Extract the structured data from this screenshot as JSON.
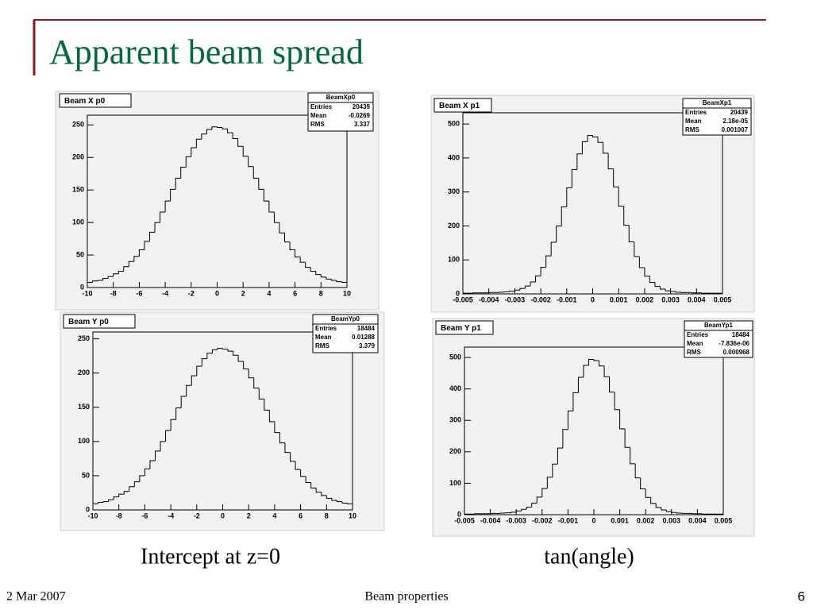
{
  "slide": {
    "title": "Apparent beam spread",
    "captions": [
      "Intercept at z=0",
      "tan(angle)"
    ],
    "footer": {
      "date": "2 Mar 2007",
      "center": "Beam properties",
      "page": "6"
    }
  },
  "chart_data": [
    {
      "type": "histogram",
      "title": "Beam X p0",
      "bins": [
        -10,
        -9.6,
        -9.2,
        -8.8,
        -8.4,
        -8,
        -7.6,
        -7.2,
        -6.8,
        -6.4,
        -6,
        -5.6,
        -5.2,
        -4.8,
        -4.4,
        -4,
        -3.6,
        -3.2,
        -2.8,
        -2.4,
        -2,
        -1.6,
        -1.2,
        -0.8,
        -0.4,
        0,
        0.4,
        0.8,
        1.2,
        1.6,
        2,
        2.4,
        2.8,
        3.2,
        3.6,
        4,
        4.4,
        4.8,
        5.2,
        5.6,
        6,
        6.4,
        6.8,
        7.2,
        7.6,
        8,
        8.4,
        8.8,
        9.2,
        9.6,
        10
      ],
      "values": [
        8,
        10,
        11,
        14,
        17,
        21,
        25,
        32,
        40,
        48,
        58,
        71,
        85,
        100,
        116,
        133,
        151,
        168,
        185,
        201,
        215,
        228,
        236,
        243,
        247,
        246,
        244,
        238,
        229,
        217,
        202,
        186,
        168,
        151,
        133,
        116,
        100,
        84,
        70,
        58,
        47,
        39,
        31,
        25,
        20,
        16,
        13,
        11,
        9,
        8
      ],
      "xlim": [
        -10,
        10
      ],
      "ylim": [
        0,
        265
      ],
      "xticks": [
        -10,
        -8,
        -6,
        -4,
        -2,
        0,
        2,
        4,
        6,
        8,
        10
      ],
      "yticks": [
        0,
        50,
        100,
        150,
        200,
        250
      ],
      "stats": {
        "name": "BeamXp0",
        "rows": [
          [
            "Entries",
            "20439"
          ],
          [
            "Mean",
            "-0.0269"
          ],
          [
            "RMS",
            "3.337"
          ]
        ]
      }
    },
    {
      "type": "histogram",
      "title": "Beam Y p0",
      "bins": [
        -10,
        -9.6,
        -9.2,
        -8.8,
        -8.4,
        -8,
        -7.6,
        -7.2,
        -6.8,
        -6.4,
        -6,
        -5.6,
        -5.2,
        -4.8,
        -4.4,
        -4,
        -3.6,
        -3.2,
        -2.8,
        -2.4,
        -2,
        -1.6,
        -1.2,
        -0.8,
        -0.4,
        0,
        0.4,
        0.8,
        1.2,
        1.6,
        2,
        2.4,
        2.8,
        3.2,
        3.6,
        4,
        4.4,
        4.8,
        5.2,
        5.6,
        6,
        6.4,
        6.8,
        7.2,
        7.6,
        8,
        8.4,
        8.8,
        9.2,
        9.6,
        10
      ],
      "values": [
        9,
        11,
        12,
        15,
        19,
        23,
        27,
        34,
        41,
        50,
        60,
        72,
        86,
        100,
        116,
        132,
        149,
        166,
        182,
        196,
        210,
        221,
        229,
        234,
        236,
        235,
        232,
        226,
        217,
        206,
        193,
        178,
        162,
        146,
        129,
        113,
        98,
        84,
        71,
        59,
        49,
        40,
        32,
        26,
        21,
        17,
        14,
        12,
        10,
        9
      ],
      "xlim": [
        -10,
        10
      ],
      "ylim": [
        0,
        260
      ],
      "xticks": [
        -10,
        -8,
        -6,
        -4,
        -2,
        0,
        2,
        4,
        6,
        8,
        10
      ],
      "yticks": [
        0,
        50,
        100,
        150,
        200,
        250
      ],
      "stats": {
        "name": "BeamYp0",
        "rows": [
          [
            "Entries",
            "18484"
          ],
          [
            "Mean",
            "0.01288"
          ],
          [
            "RMS",
            "3.379"
          ]
        ]
      }
    },
    {
      "type": "histogram",
      "title": "Beam X p1",
      "bins": [
        -0.005,
        -0.0048,
        -0.0046,
        -0.0044,
        -0.0042,
        -0.004,
        -0.0038,
        -0.0036,
        -0.0034,
        -0.0032,
        -0.003,
        -0.0028,
        -0.0026,
        -0.0024,
        -0.0022,
        -0.002,
        -0.0018,
        -0.0016,
        -0.0014,
        -0.0012,
        -0.001,
        -0.0008,
        -0.0006,
        -0.0004,
        -0.0002,
        0,
        0.0002,
        0.0004,
        0.0006,
        0.0008,
        0.001,
        0.0012,
        0.0014,
        0.0016,
        0.0018,
        0.002,
        0.0022,
        0.0024,
        0.0026,
        0.0028,
        0.003,
        0.0032,
        0.0034,
        0.0036,
        0.0038,
        0.004,
        0.0042,
        0.0044,
        0.0046,
        0.0048,
        0.005
      ],
      "values": [
        2,
        2,
        3,
        3,
        3,
        4,
        4,
        5,
        6,
        8,
        11,
        16,
        23,
        35,
        53,
        78,
        112,
        152,
        200,
        256,
        312,
        366,
        412,
        448,
        466,
        462,
        446,
        414,
        368,
        315,
        258,
        202,
        153,
        110,
        77,
        52,
        34,
        22,
        14,
        9,
        7,
        5,
        4,
        4,
        3,
        3,
        2,
        2,
        2,
        2
      ],
      "xlim": [
        -0.005,
        0.005
      ],
      "ylim": [
        0,
        533
      ],
      "xticks": [
        -0.005,
        -0.004,
        -0.003,
        -0.002,
        -0.001,
        0,
        0.001,
        0.002,
        0.003,
        0.004,
        0.005
      ],
      "yticks": [
        0,
        100,
        200,
        300,
        400,
        500
      ],
      "stats": {
        "name": "BeamXp1",
        "rows": [
          [
            "Entries",
            "20439"
          ],
          [
            "Mean",
            "2.18e-05"
          ],
          [
            "RMS",
            "0.001007"
          ]
        ]
      }
    },
    {
      "type": "histogram",
      "title": "Beam Y p1",
      "bins": [
        -0.005,
        -0.0048,
        -0.0046,
        -0.0044,
        -0.0042,
        -0.004,
        -0.0038,
        -0.0036,
        -0.0034,
        -0.0032,
        -0.003,
        -0.0028,
        -0.0026,
        -0.0024,
        -0.0022,
        -0.002,
        -0.0018,
        -0.0016,
        -0.0014,
        -0.0012,
        -0.001,
        -0.0008,
        -0.0006,
        -0.0004,
        -0.0002,
        0,
        0.0002,
        0.0004,
        0.0006,
        0.0008,
        0.001,
        0.0012,
        0.0014,
        0.0016,
        0.0018,
        0.002,
        0.0022,
        0.0024,
        0.0026,
        0.0028,
        0.003,
        0.0032,
        0.0034,
        0.0036,
        0.0038,
        0.004,
        0.0042,
        0.0044,
        0.0046,
        0.0048,
        0.005
      ],
      "values": [
        2,
        2,
        3,
        3,
        3,
        4,
        4,
        5,
        6,
        8,
        12,
        17,
        24,
        37,
        56,
        83,
        119,
        161,
        212,
        271,
        330,
        388,
        437,
        475,
        494,
        490,
        473,
        439,
        390,
        334,
        273,
        214,
        162,
        117,
        82,
        55,
        36,
        23,
        15,
        10,
        7,
        5,
        4,
        4,
        3,
        3,
        2,
        2,
        2,
        2
      ],
      "xlim": [
        -0.005,
        0.005
      ],
      "ylim": [
        0,
        533
      ],
      "xticks": [
        -0.005,
        -0.004,
        -0.003,
        -0.002,
        -0.001,
        0,
        0.001,
        0.002,
        0.003,
        0.004,
        0.005
      ],
      "yticks": [
        0,
        100,
        200,
        300,
        400,
        500
      ],
      "stats": {
        "name": "BeamYp1",
        "rows": [
          [
            "Entries",
            "18484"
          ],
          [
            "Mean",
            "-7.836e-06"
          ],
          [
            "RMS",
            "0.000968"
          ]
        ]
      }
    }
  ]
}
